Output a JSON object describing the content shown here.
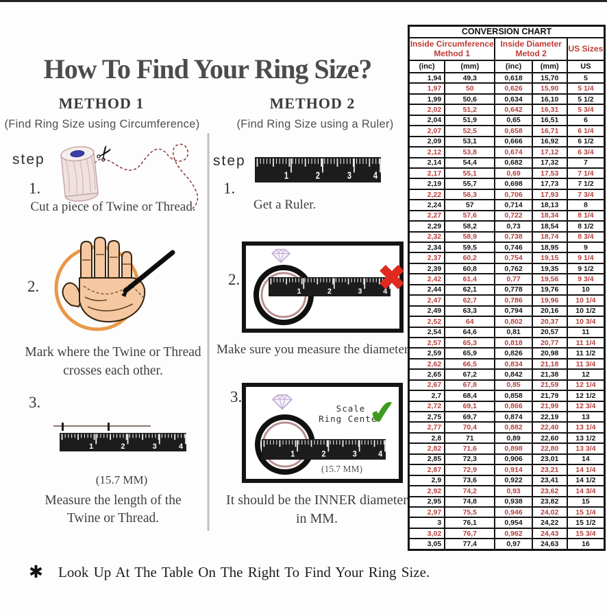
{
  "title": "How To Find Your Ring Size?",
  "footnote_symbol": "✱",
  "footnote": "Look Up At The Table On The Right To Find Your Ring Size.",
  "ruler_numbers": [
    "1",
    "2",
    "3",
    "4"
  ],
  "icons": {
    "scissors": "✂",
    "x_mark": "✖",
    "check": "✔",
    "asterisk": "✱"
  },
  "method1": {
    "heading": "METHOD 1",
    "subheading": "(Find Ring Size using Circumference)",
    "step_label": "step",
    "steps": [
      {
        "num": "1.",
        "caption": "Cut a piece of  Twine or Thread."
      },
      {
        "num": "2.",
        "caption": "Mark where the Twine or Thread\ncrosses each other."
      },
      {
        "num": "3.",
        "caption": "Measure the length of the\nTwine or Thread.",
        "measurement": "(15.7 MM)"
      }
    ]
  },
  "method2": {
    "heading": "METHOD 2",
    "subheading": "(Find Ring Size using a Ruler)",
    "step_label": "step",
    "steps": [
      {
        "num": "1.",
        "caption": "Get a Ruler."
      },
      {
        "num": "2.",
        "caption": "Make sure you measure the diameter."
      },
      {
        "num": "3.",
        "caption": "It should be the INNER diameter\nin MM.",
        "scale_label": "Scale\nRing Center",
        "measurement": "(15.7 MM)"
      }
    ]
  },
  "chart": {
    "title": "CONVERSION CHART",
    "col_groups": [
      {
        "line1": "Inside Circumference",
        "line2": "Method 1"
      },
      {
        "line1": "Inside Diameter",
        "line2": "Metod 2"
      },
      {
        "line1": "US Sizes",
        "line2": ""
      }
    ],
    "unit_row": [
      "(inc)",
      "(mm)",
      "(inc)",
      "(mm)",
      "US"
    ],
    "rows": [
      [
        "1,94",
        "49,3",
        "0,618",
        "15,70",
        "5"
      ],
      [
        "1,97",
        "50",
        "0,626",
        "15,90",
        "5 1/4"
      ],
      [
        "1,99",
        "50,6",
        "0,634",
        "16,10",
        "5 1/2"
      ],
      [
        "2,02",
        "51,2",
        "0,642",
        "16,31",
        "5 3/4"
      ],
      [
        "2,04",
        "51,9",
        "0,65",
        "16,51",
        "6"
      ],
      [
        "2,07",
        "52,5",
        "0,658",
        "16,71",
        "6 1/4"
      ],
      [
        "2,09",
        "53,1",
        "0,666",
        "16,92",
        "6 1/2"
      ],
      [
        "2,12",
        "53,8",
        "0,674",
        "17,12",
        "6 3/4"
      ],
      [
        "2,14",
        "54,4",
        "0,682",
        "17,32",
        "7"
      ],
      [
        "2,17",
        "55,1",
        "0,69",
        "17,53",
        "7 1/4"
      ],
      [
        "2,19",
        "55,7",
        "0,698",
        "17,73",
        "7 1/2"
      ],
      [
        "2,22",
        "56,3",
        "0,706",
        "17,93",
        "7 3/4"
      ],
      [
        "2,24",
        "57",
        "0,714",
        "18,13",
        "8"
      ],
      [
        "2,27",
        "57,6",
        "0,722",
        "18,34",
        "8 1/4"
      ],
      [
        "2,29",
        "58,2",
        "0,73",
        "18,54",
        "8 1/2"
      ],
      [
        "2,32",
        "58,9",
        "0,738",
        "18,74",
        "8 3/4"
      ],
      [
        "2,34",
        "59,5",
        "0,746",
        "18,95",
        "9"
      ],
      [
        "2,37",
        "60,2",
        "0,754",
        "19,15",
        "9 1/4"
      ],
      [
        "2,39",
        "60,8",
        "0,762",
        "19,35",
        "9 1/2"
      ],
      [
        "2,42",
        "61,4",
        "0,77",
        "19,56",
        "9 3/4"
      ],
      [
        "2,44",
        "62,1",
        "0,778",
        "19,76",
        "10"
      ],
      [
        "2,47",
        "62,7",
        "0,786",
        "19,96",
        "10 1/4"
      ],
      [
        "2,49",
        "63,3",
        "0,794",
        "20,16",
        "10 1/2"
      ],
      [
        "2,52",
        "64",
        "0,802",
        "20,37",
        "10 3/4"
      ],
      [
        "2,54",
        "64,6",
        "0,81",
        "20,57",
        "11"
      ],
      [
        "2,57",
        "65,3",
        "0,818",
        "20,77",
        "11 1/4"
      ],
      [
        "2,59",
        "65,9",
        "0,826",
        "20,98",
        "11 1/2"
      ],
      [
        "2,62",
        "66,5",
        "0,834",
        "21,18",
        "11 3/4"
      ],
      [
        "2,65",
        "67,2",
        "0,842",
        "21,38",
        "12"
      ],
      [
        "2,67",
        "67,8",
        "0,85",
        "21,59",
        "12 1/4"
      ],
      [
        "2,7",
        "68,4",
        "0,858",
        "21,79",
        "12 1/2"
      ],
      [
        "2,72",
        "69,1",
        "0,866",
        "21,99",
        "12 3/4"
      ],
      [
        "2,75",
        "69,7",
        "0,874",
        "22,19",
        "13"
      ],
      [
        "2,77",
        "70,4",
        "0,882",
        "22,40",
        "13 1/4"
      ],
      [
        "2,8",
        "71",
        "0,89",
        "22,60",
        "13 1/2"
      ],
      [
        "2,82",
        "71,6",
        "0,898",
        "22,80",
        "13 3/4"
      ],
      [
        "2,85",
        "72,3",
        "0,906",
        "23,01",
        "14"
      ],
      [
        "2,87",
        "72,9",
        "0,914",
        "23,21",
        "14 1/4"
      ],
      [
        "2,9",
        "73,6",
        "0,922",
        "23,41",
        "14 1/2"
      ],
      [
        "2,92",
        "74,2",
        "0,93",
        "23,62",
        "14 3/4"
      ],
      [
        "2,95",
        "74,8",
        "0,938",
        "23,82",
        "15"
      ],
      [
        "2,97",
        "75,5",
        "0,946",
        "24,02",
        "15 1/4"
      ],
      [
        "3",
        "76,1",
        "0,954",
        "24,22",
        "15 1/2"
      ],
      [
        "3,02",
        "76,7",
        "0,962",
        "24,43",
        "15 3/4"
      ],
      [
        "3,05",
        "77,4",
        "0,97",
        "24,63",
        "16"
      ]
    ]
  },
  "colors": {
    "table_red": "#b5413d",
    "header_red": "#bf3a35",
    "title_gray": "#4c4c4c",
    "orange": "#e8923f",
    "skin": "#f5c8a2",
    "ring_pink": "#bb8f8f",
    "check_green": "#3f9b1f",
    "x_red": "#e02a20",
    "diamond_purple": "#c3aed4"
  }
}
